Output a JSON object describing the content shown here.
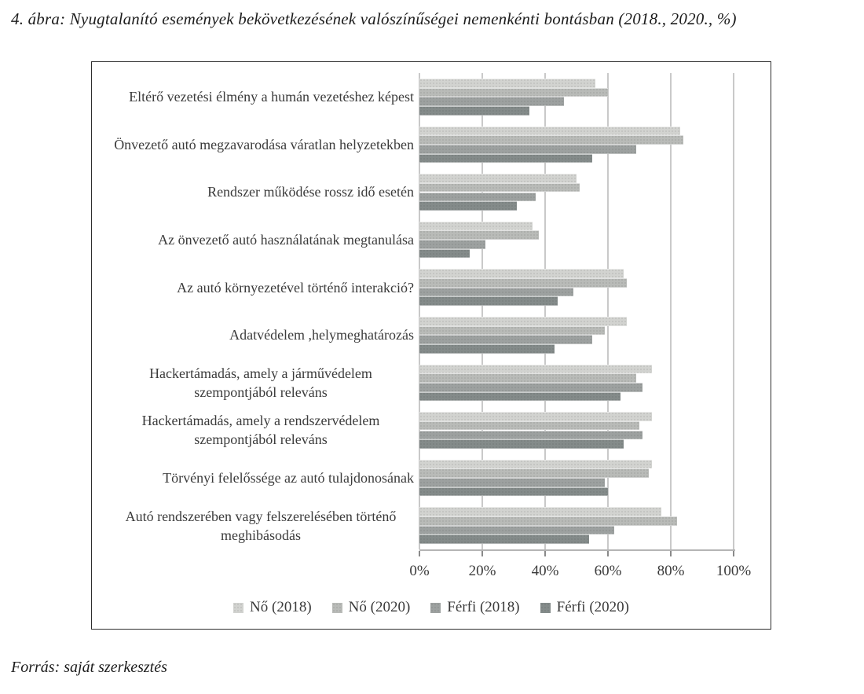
{
  "title": "4. ábra: Nyugtalanító események bekövetkezésének valószínűségei nemenkénti bontásban (2018., 2020., %)",
  "source_note": "Forrás: saját szerkesztés",
  "chart_data": {
    "type": "bar",
    "orientation": "horizontal",
    "title": "4. ábra: Nyugtalanító események bekövetkezésének valószínűségei nemenkénti bontásban (2018., 2020., %)",
    "xlabel": "",
    "ylabel": "",
    "xlim": [
      0,
      100
    ],
    "grid": true,
    "legend_position": "bottom",
    "x_ticks": [
      "0%",
      "20%",
      "40%",
      "60%",
      "80%",
      "100%"
    ],
    "x_tick_values": [
      0,
      20,
      40,
      60,
      80,
      100
    ],
    "categories": [
      "Eltérő vezetési élmény a humán vezetéshez képest",
      "Önvezető autó megzavarodása váratlan helyzetekben",
      "Rendszer működése rossz idő esetén",
      "Az önvezető autó használatának megtanulása",
      "Az autó környezetével történő interakció?",
      "Adatvédelem ,helymeghatározás",
      "Hackertámadás, amely a járművédelem szempontjából releváns",
      "Hackertámadás, amely a rendszervédelem szempontjából releváns",
      "Törvényi felelőssége az autó tulajdonosának",
      "Autó rendszerében vagy felszerelésében történő meghibásodás"
    ],
    "series": [
      {
        "name": "Nő (2018)",
        "color": "#d2d3d0",
        "values": [
          56,
          83,
          50,
          36,
          65,
          66,
          74,
          74,
          74,
          77
        ]
      },
      {
        "name": "Nő (2020)",
        "color": "#b9bbb8",
        "values": [
          60,
          84,
          51,
          38,
          66,
          59,
          69,
          70,
          73,
          82
        ]
      },
      {
        "name": "Férfi (2018)",
        "color": "#9da1a0",
        "values": [
          46,
          69,
          37,
          21,
          49,
          55,
          71,
          71,
          59,
          62
        ]
      },
      {
        "name": "Férfi (2020)",
        "color": "#848b8a",
        "values": [
          35,
          55,
          31,
          16,
          44,
          43,
          64,
          65,
          60,
          54
        ]
      }
    ],
    "colors": {
      "gridline": "#c9c9c9",
      "frame_border": "#2e2e2e",
      "text": "#3b3b3b"
    }
  }
}
